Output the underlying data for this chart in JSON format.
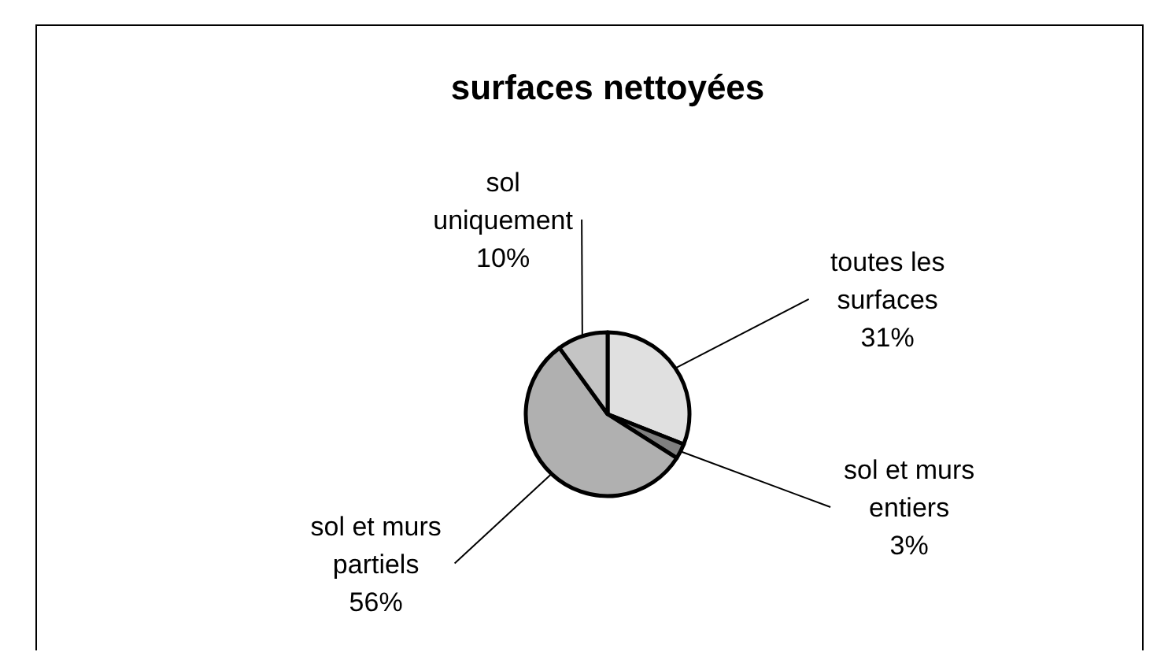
{
  "chart_data": {
    "type": "pie",
    "title": "surfaces nettoyées",
    "categories": [
      "toutes les surfaces",
      "sol et murs entiers",
      "sol et murs partiels",
      "sol uniquement"
    ],
    "values": [
      31,
      3,
      56,
      10
    ],
    "value_labels": [
      "31%",
      "3%",
      "56%",
      "10%"
    ],
    "colors": [
      "#e0e0e0",
      "#808080",
      "#b0b0b0",
      "#c4c4c4"
    ]
  }
}
